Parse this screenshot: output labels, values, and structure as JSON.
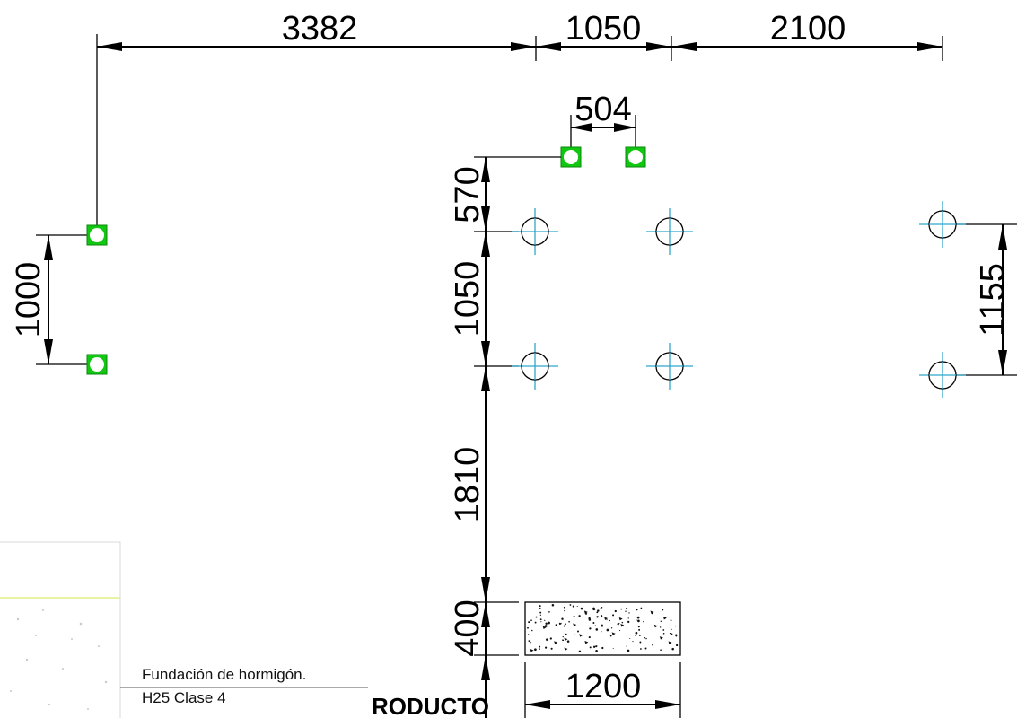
{
  "dimensions": {
    "top_left": "3382",
    "top_mid": "1050",
    "top_right": "2100",
    "anchor_spacing": "504",
    "left_vertical": "1000",
    "v_570": "570",
    "v_1050": "1050",
    "v_1810": "1810",
    "v_400": "400",
    "right_vertical": "1155",
    "bottom_width": "1200"
  },
  "legend": {
    "material_line1": "Fundación de hormigón.",
    "material_line2": "H25 Clase 4"
  },
  "label_product": "RODUCTO",
  "colors": {
    "anchor_green": "#12c712",
    "axis_cyan": "#2fa6c9",
    "legend_yellow_line": "#e3ef86"
  },
  "icons": {
    "anchor": "square-anchor-icon",
    "pile": "circle-crosshair-icon"
  }
}
